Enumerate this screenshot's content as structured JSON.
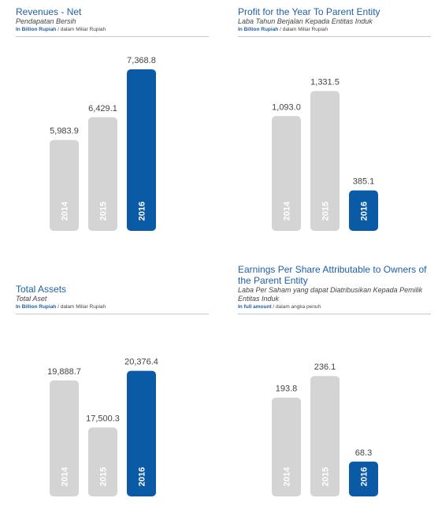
{
  "chart_data": [
    {
      "type": "bar",
      "title": "Revenues - Net",
      "subtitle": "Pendapatan Bersih",
      "unit": "In Billion Rupiah",
      "unit_local": "/ dalam Miliar Rupiah",
      "categories": [
        "2014",
        "2015",
        "2016"
      ],
      "values": [
        5983.9,
        6429.1,
        7368.8
      ],
      "value_labels": [
        "5,983.9",
        "6,429.1",
        "7,368.8"
      ],
      "colors": [
        "#d4d4d4",
        "#d4d4d4",
        "#0b5aa6"
      ],
      "ylim": [
        4200,
        7600
      ]
    },
    {
      "type": "bar",
      "title": "Profit for the Year To Parent Entity",
      "subtitle": "Laba Tahun Berjalan Kepada Entitas Induk",
      "unit": "In Billion Rupiah",
      "unit_local": "/ dalam Miliar Rupiah",
      "categories": [
        "2014",
        "2015",
        "2016"
      ],
      "values": [
        1093.0,
        1331.5,
        385.1
      ],
      "value_labels": [
        "1,093.0",
        "1,331.5",
        "385.1"
      ],
      "colors": [
        "#d4d4d4",
        "#d4d4d4",
        "#0b5aa6"
      ],
      "ylim": [
        0,
        1650
      ]
    },
    {
      "type": "bar",
      "title": "Total Assets",
      "subtitle": "Total Aset",
      "unit": "In Billion Rupiah",
      "unit_local": "/ dalam Miliar Rupiah",
      "categories": [
        "2014",
        "2015",
        "2016"
      ],
      "values": [
        19888.7,
        17500.3,
        20376.4
      ],
      "value_labels": [
        "19,888.7",
        "17,500.3",
        "20,376.4"
      ],
      "colors": [
        "#d4d4d4",
        "#d4d4d4",
        "#0b5aa6"
      ],
      "ylim": [
        14000,
        22800
      ]
    },
    {
      "type": "bar",
      "title": "Earnings Per Share Attributable to Owners of the Parent Entity",
      "subtitle": "Laba Per Saham yang dapat Diatribusikan Kepada Pemilik Entitas Induk",
      "unit": "In full amount",
      "unit_local": "/ dalam angka penuh",
      "categories": [
        "2014",
        "2015",
        "2016"
      ],
      "values": [
        193.8,
        236.1,
        68.3
      ],
      "colors": [
        "#d4d4d4",
        "#d4d4d4",
        "#0b5aa6"
      ],
      "ylim": [
        0,
        340
      ]
    }
  ]
}
